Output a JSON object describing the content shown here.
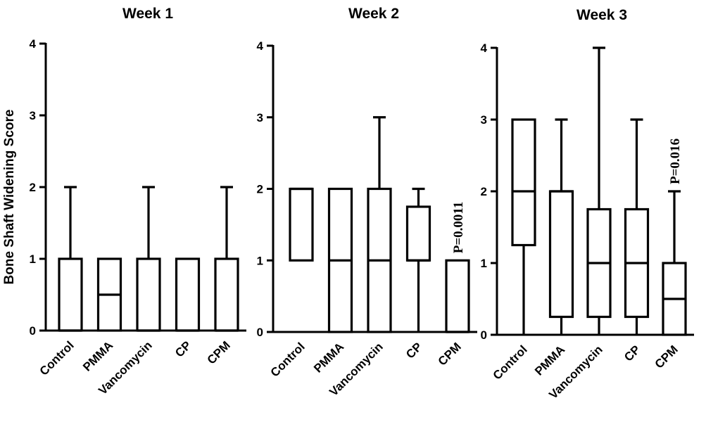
{
  "chart_data": [
    {
      "type": "box",
      "title": "Week 1",
      "ylabel": "Bone Shaft Widening Score",
      "ylim": [
        0,
        4
      ],
      "yticks": [
        "0",
        "1",
        "2",
        "3",
        "4"
      ],
      "categories": [
        "Control",
        "PMMA",
        "Vancomycin",
        "CP",
        "CPM"
      ],
      "boxes": [
        {
          "min": 0,
          "q1": 0,
          "median": 0,
          "q3": 1,
          "max": 2
        },
        {
          "min": 0,
          "q1": 0,
          "median": 0.5,
          "q3": 1,
          "max": 1
        },
        {
          "min": 0,
          "q1": 0,
          "median": 0,
          "q3": 1,
          "max": 2
        },
        {
          "min": 0,
          "q1": 0,
          "median": 0,
          "q3": 1,
          "max": 1
        },
        {
          "min": 0,
          "q1": 0,
          "median": 0,
          "q3": 1,
          "max": 2
        }
      ],
      "annotation": ""
    },
    {
      "type": "box",
      "title": "Week 2",
      "ylabel": "",
      "ylim": [
        0,
        4
      ],
      "yticks": [
        "0",
        "1",
        "2",
        "3",
        "4"
      ],
      "categories": [
        "Control",
        "PMMA",
        "Vancomycin",
        "CP",
        "CPM"
      ],
      "boxes": [
        {
          "min": 1,
          "q1": 1,
          "median": 2,
          "q3": 2,
          "max": 2
        },
        {
          "min": 0,
          "q1": 0,
          "median": 1,
          "q3": 2,
          "max": 2
        },
        {
          "min": 0,
          "q1": 0,
          "median": 1,
          "q3": 2,
          "max": 3
        },
        {
          "min": 0,
          "q1": 1,
          "median": 1,
          "q3": 1.75,
          "max": 2
        },
        {
          "min": 0,
          "q1": 0,
          "median": 0,
          "q3": 1,
          "max": 1
        }
      ],
      "annotation": "P=0.0011",
      "annotation_index": 4
    },
    {
      "type": "box",
      "title": "Week 3",
      "ylabel": "",
      "ylim": [
        0,
        4
      ],
      "yticks": [
        "0",
        "1",
        "2",
        "3",
        "4"
      ],
      "categories": [
        "Control",
        "PMMA",
        "Vancomycin",
        "CP",
        "CPM"
      ],
      "boxes": [
        {
          "min": 0,
          "q1": 1.25,
          "median": 2,
          "q3": 3,
          "max": 3
        },
        {
          "min": 0,
          "q1": 0.25,
          "median": 2,
          "q3": 2,
          "max": 3
        },
        {
          "min": 0,
          "q1": 0.25,
          "median": 1,
          "q3": 1.75,
          "max": 4
        },
        {
          "min": 0,
          "q1": 0.25,
          "median": 1,
          "q3": 1.75,
          "max": 3
        },
        {
          "min": 0,
          "q1": 0,
          "median": 0.5,
          "q3": 1,
          "max": 2
        }
      ],
      "annotation": "P=0.016",
      "annotation_index": 4
    }
  ]
}
